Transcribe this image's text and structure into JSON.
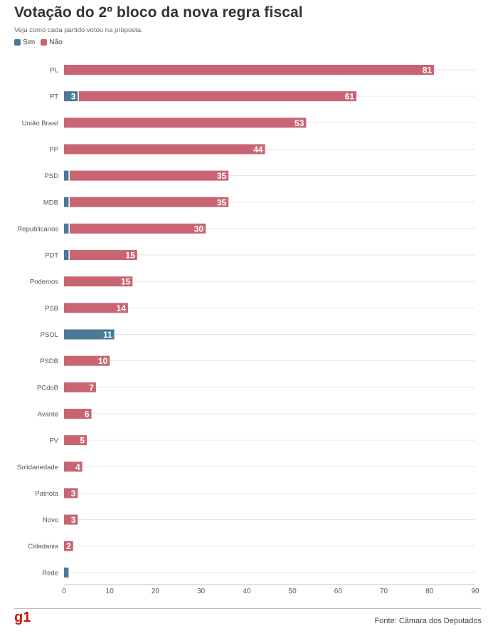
{
  "title": "Votação do 2º bloco da nova regra fiscal",
  "subtitle": "Veja como cada partido votou na proposta.",
  "legend": [
    {
      "label": "Sim",
      "color": "#4a7a96"
    },
    {
      "label": "Não",
      "color": "#c96573"
    }
  ],
  "source": "Fonte: Câmara dos Deputados",
  "logo": "g1",
  "chart_data": {
    "type": "bar",
    "orientation": "horizontal",
    "stacked": true,
    "categories": [
      "PL",
      "PT",
      "União Brasil",
      "PP",
      "PSD",
      "MDB",
      "Republicanos",
      "PDT",
      "Podemos",
      "PSB",
      "PSOL",
      "PSDB",
      "PCdoB",
      "Avante",
      "PV",
      "Solidariedade",
      "Patriota",
      "Novo",
      "Cidadania",
      "Rede"
    ],
    "series": [
      {
        "name": "Sim",
        "color": "#4a7a96",
        "values": [
          0,
          3,
          0,
          0,
          1,
          1,
          1,
          1,
          0,
          0,
          11,
          0,
          0,
          0,
          0,
          0,
          0,
          0,
          0,
          1
        ]
      },
      {
        "name": "Não",
        "color": "#c96573",
        "values": [
          81,
          61,
          53,
          44,
          35,
          35,
          30,
          15,
          15,
          14,
          0,
          10,
          7,
          6,
          5,
          4,
          3,
          3,
          2,
          0
        ]
      }
    ],
    "xlim": [
      0,
      90
    ],
    "xticks": [
      0,
      10,
      20,
      30,
      40,
      50,
      60,
      70,
      80,
      90
    ],
    "grid": true,
    "legend_position": "top-left"
  }
}
